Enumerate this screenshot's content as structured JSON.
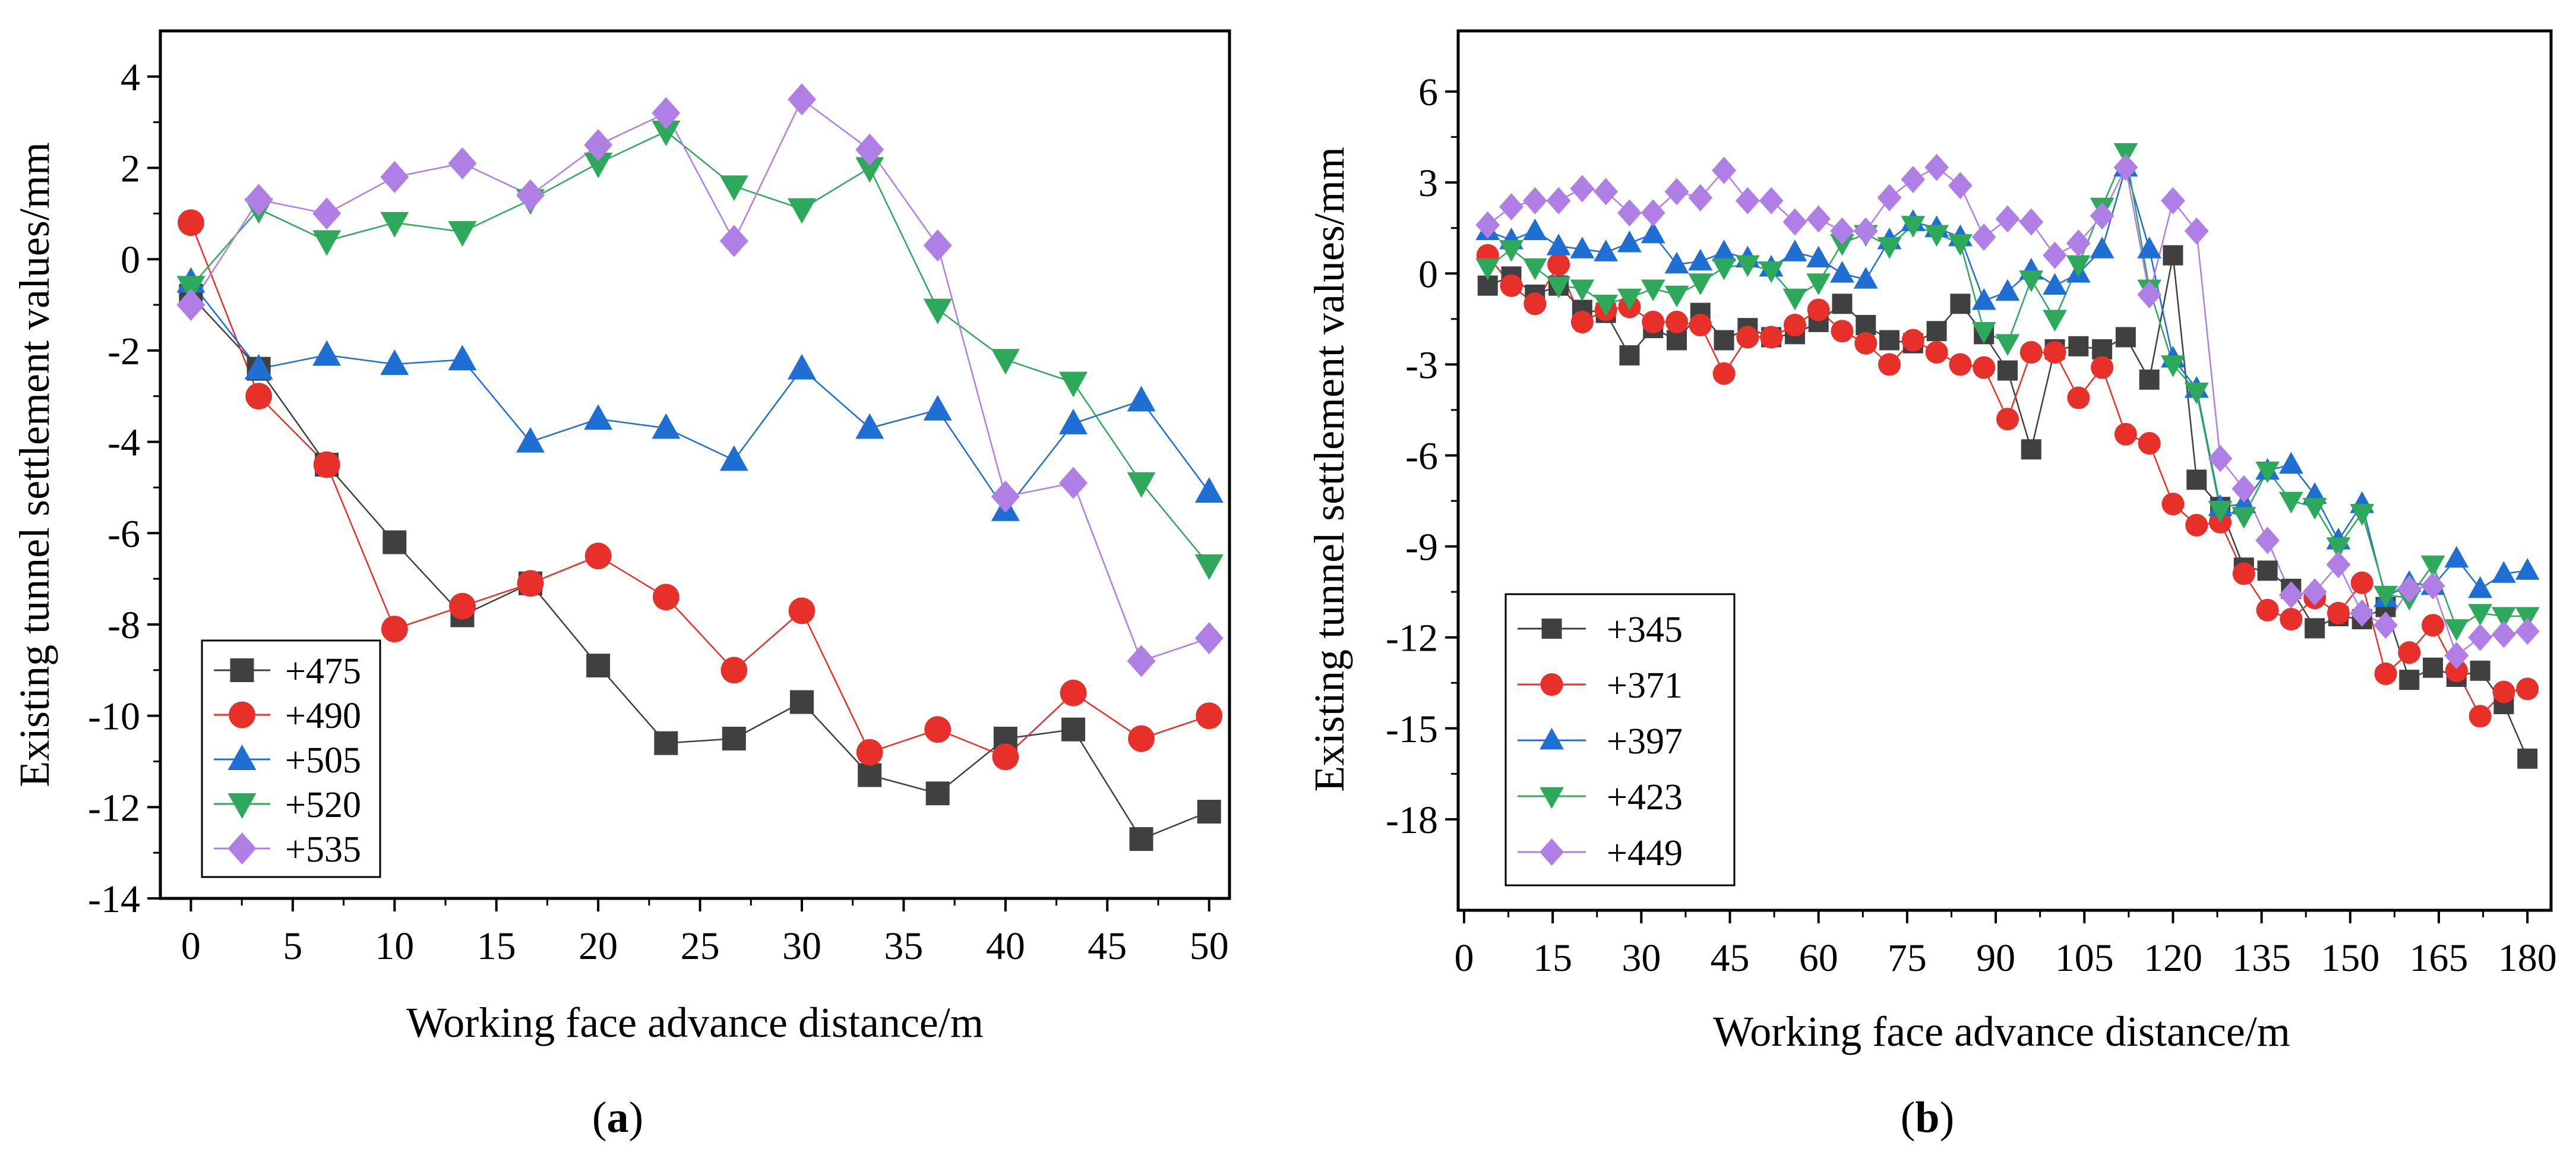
{
  "chart_data": [
    {
      "type": "line",
      "panel_label": "(a)",
      "panel_letter": "a",
      "xlabel": "Working face advance distance/m",
      "ylabel": "Existing tunnel settlement values/mm",
      "xlim": [
        -1.5,
        51
      ],
      "ylim": [
        -14,
        5
      ],
      "xticks": [
        0,
        5,
        10,
        15,
        20,
        25,
        30,
        35,
        40,
        45,
        50
      ],
      "yticks": [
        4,
        2,
        0,
        -2,
        -4,
        -6,
        -8,
        -10,
        -12,
        -14
      ],
      "legend_position": "bottom-left",
      "x": [
        0,
        3.33,
        6.67,
        10,
        13.33,
        16.67,
        20,
        23.33,
        26.67,
        30,
        33.33,
        36.67,
        40,
        43.33,
        46.67,
        50
      ],
      "series": [
        {
          "name": "+475",
          "color": "#404040",
          "marker": "square",
          "values": [
            -0.8,
            -2.4,
            -4.5,
            -6.2,
            -7.8,
            -7.1,
            -8.9,
            -10.6,
            -10.5,
            -9.7,
            -11.3,
            -11.7,
            -10.5,
            -10.3,
            -12.7,
            -12.1
          ]
        },
        {
          "name": "+490",
          "color": "#e8302a",
          "marker": "circle",
          "values": [
            0.8,
            -3.0,
            -4.5,
            -8.1,
            -7.6,
            -7.1,
            -6.5,
            -7.4,
            -9.0,
            -7.7,
            -10.8,
            -10.3,
            -10.9,
            -9.5,
            -10.5,
            -10.0
          ]
        },
        {
          "name": "+505",
          "color": "#1f6ed4",
          "marker": "triangle-up",
          "values": [
            -0.5,
            -2.4,
            -2.1,
            -2.3,
            -2.2,
            -4.0,
            -3.5,
            -3.7,
            -4.4,
            -2.4,
            -3.7,
            -3.3,
            -5.5,
            -3.6,
            -3.1,
            -5.1
          ]
        },
        {
          "name": "+520",
          "color": "#2ea85a",
          "marker": "triangle-down",
          "values": [
            -0.6,
            1.1,
            0.4,
            0.8,
            0.6,
            1.3,
            2.1,
            2.8,
            1.6,
            1.1,
            2.0,
            -1.1,
            -2.2,
            -2.7,
            -4.9,
            -6.7
          ]
        },
        {
          "name": "+535",
          "color": "#b07fe6",
          "marker": "diamond",
          "values": [
            -1.0,
            1.3,
            1.0,
            1.8,
            2.1,
            1.4,
            2.5,
            3.2,
            0.4,
            3.5,
            2.4,
            0.3,
            -5.2,
            -4.9,
            -8.8,
            -8.3
          ]
        }
      ]
    },
    {
      "type": "line",
      "panel_label": "(b)",
      "panel_letter": "b",
      "xlabel": "Working face advance distance/m",
      "ylabel": "Existing tunnel settlement values/mm",
      "xlim": [
        -1,
        184
      ],
      "ylim": [
        -21,
        8
      ],
      "xticks": [
        0,
        15,
        30,
        45,
        60,
        75,
        90,
        105,
        120,
        135,
        150,
        165,
        180
      ],
      "yticks": [
        6,
        3,
        0,
        -3,
        -6,
        -9,
        -12,
        -15,
        -18
      ],
      "legend_position": "bottom-left",
      "x": [
        4,
        8,
        12,
        16,
        20,
        24,
        28,
        32,
        36,
        40,
        44,
        48,
        52,
        56,
        60,
        64,
        68,
        72,
        76,
        80,
        84,
        88,
        92,
        96,
        100,
        104,
        108,
        112,
        116,
        120,
        124,
        128,
        132,
        136,
        140,
        144,
        148,
        152,
        156,
        160,
        164,
        168,
        172,
        176,
        180
      ],
      "series": [
        {
          "name": "+345",
          "color": "#404040",
          "marker": "square",
          "values": [
            -0.4,
            -0.1,
            -0.7,
            -0.4,
            -1.2,
            -1.3,
            -2.7,
            -1.8,
            -2.2,
            -1.3,
            -2.2,
            -1.8,
            -2.1,
            -2.0,
            -1.6,
            -1.0,
            -1.7,
            -2.2,
            -2.3,
            -1.9,
            -1.0,
            -2.0,
            -3.2,
            -5.8,
            -2.5,
            -2.4,
            -2.5,
            -2.1,
            -3.5,
            0.6,
            -6.8,
            -7.7,
            -9.7,
            -9.8,
            -10.4,
            -11.7,
            -11.3,
            -11.4,
            -11.0,
            -13.4,
            -13.0,
            -13.3,
            -13.1,
            -14.2,
            -16.0
          ]
        },
        {
          "name": "+371",
          "color": "#e8302a",
          "marker": "circle",
          "values": [
            0.6,
            -0.4,
            -1.0,
            0.3,
            -1.6,
            -1.2,
            -1.1,
            -1.6,
            -1.6,
            -1.7,
            -3.3,
            -2.1,
            -2.1,
            -1.7,
            -1.2,
            -1.9,
            -2.3,
            -3.0,
            -2.2,
            -2.6,
            -3.0,
            -3.1,
            -4.8,
            -2.6,
            -2.6,
            -4.1,
            -3.1,
            -5.3,
            -5.6,
            -7.6,
            -8.3,
            -8.2,
            -9.9,
            -11.1,
            -11.4,
            -10.7,
            -11.2,
            -10.2,
            -13.2,
            -12.5,
            -11.6,
            -13.1,
            -14.6,
            -13.8,
            -13.7
          ]
        },
        {
          "name": "+397",
          "color": "#1f6ed4",
          "marker": "triangle-up",
          "values": [
            1.4,
            1.1,
            1.4,
            0.9,
            0.8,
            0.7,
            1.0,
            1.3,
            0.3,
            0.4,
            0.7,
            0.5,
            0.2,
            0.7,
            0.5,
            0.0,
            -0.2,
            1.1,
            1.7,
            1.5,
            1.2,
            -0.9,
            -0.6,
            0.1,
            -0.4,
            0.0,
            0.8,
            3.5,
            0.8,
            -2.8,
            -3.8,
            -7.7,
            -7.6,
            -6.5,
            -6.3,
            -7.3,
            -8.8,
            -7.6,
            -10.7,
            -10.2,
            -10.3,
            -9.4,
            -10.4,
            -9.9,
            -9.8
          ]
        },
        {
          "name": "+423",
          "color": "#2ea85a",
          "marker": "triangle-down",
          "values": [
            0.2,
            0.8,
            0.2,
            -0.4,
            -0.5,
            -1.0,
            -0.8,
            -0.5,
            -0.7,
            -0.3,
            0.2,
            0.3,
            0.1,
            -0.8,
            -0.3,
            1.0,
            1.3,
            0.9,
            1.6,
            1.3,
            1.0,
            -1.9,
            -2.3,
            -0.2,
            -1.5,
            0.3,
            2.2,
            4.0,
            -0.5,
            -3.0,
            -3.9,
            -7.8,
            -8.0,
            -6.5,
            -7.5,
            -7.7,
            -9.0,
            -7.9,
            -10.6,
            -10.7,
            -9.6,
            -11.7,
            -11.2,
            -11.3,
            -11.3
          ]
        },
        {
          "name": "+449",
          "color": "#b07fe6",
          "marker": "diamond",
          "values": [
            1.6,
            2.2,
            2.4,
            2.4,
            2.8,
            2.7,
            2.0,
            2.0,
            2.7,
            2.5,
            3.4,
            2.4,
            2.4,
            1.7,
            1.8,
            1.4,
            1.4,
            2.5,
            3.1,
            3.5,
            2.9,
            1.2,
            1.8,
            1.7,
            0.6,
            1.0,
            1.9,
            3.5,
            -0.7,
            2.4,
            1.4,
            -6.1,
            -7.1,
            -8.8,
            -10.6,
            -10.5,
            -9.6,
            -11.2,
            -11.6,
            -10.4,
            -10.3,
            -12.6,
            -12.0,
            -11.9,
            -11.8
          ]
        }
      ]
    }
  ]
}
